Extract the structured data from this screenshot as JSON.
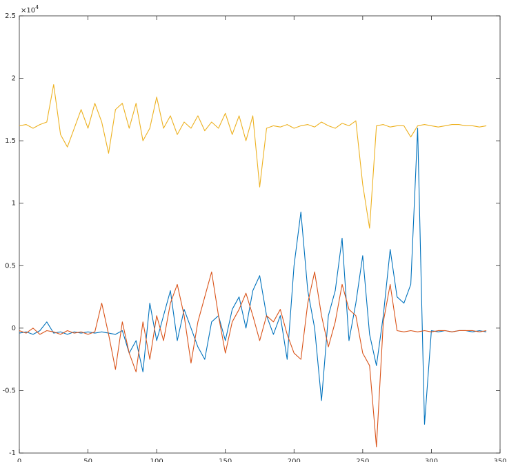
{
  "chart_data": {
    "type": "line",
    "x": [
      0,
      5,
      10,
      15,
      20,
      25,
      30,
      35,
      40,
      45,
      50,
      55,
      60,
      65,
      70,
      75,
      80,
      85,
      90,
      95,
      100,
      105,
      110,
      115,
      120,
      125,
      130,
      135,
      140,
      145,
      150,
      155,
      160,
      165,
      170,
      175,
      180,
      185,
      190,
      195,
      200,
      205,
      210,
      215,
      220,
      225,
      230,
      235,
      240,
      245,
      250,
      255,
      260,
      265,
      270,
      275,
      280,
      285,
      290,
      295,
      300,
      305,
      310,
      315,
      320,
      325,
      330,
      335,
      340
    ],
    "series": [
      {
        "color": "#0072BD",
        "values": [
          -0.04,
          -0.03,
          -0.05,
          -0.02,
          0.05,
          -0.04,
          -0.03,
          -0.05,
          -0.03,
          -0.04,
          -0.03,
          -0.04,
          -0.03,
          -0.04,
          -0.05,
          -0.02,
          -0.2,
          -0.1,
          -0.35,
          0.2,
          -0.1,
          0.1,
          0.3,
          -0.1,
          0.15,
          0.0,
          -0.15,
          -0.25,
          0.05,
          0.1,
          -0.1,
          0.15,
          0.25,
          0.0,
          0.3,
          0.42,
          0.1,
          -0.05,
          0.1,
          -0.25,
          0.5,
          0.93,
          0.3,
          0.0,
          -0.58,
          0.1,
          0.3,
          0.72,
          -0.1,
          0.2,
          0.58,
          -0.05,
          -0.3,
          0.1,
          0.63,
          0.25,
          0.2,
          0.35,
          1.6,
          -0.77,
          -0.02,
          -0.03,
          -0.02,
          -0.03,
          -0.02,
          -0.02,
          -0.03,
          -0.02,
          -0.03
        ]
      },
      {
        "color": "#D95319",
        "values": [
          -0.02,
          -0.04,
          0.0,
          -0.05,
          -0.02,
          -0.03,
          -0.05,
          -0.02,
          -0.04,
          -0.03,
          -0.05,
          -0.03,
          0.2,
          -0.05,
          -0.33,
          0.05,
          -0.2,
          -0.35,
          0.05,
          -0.25,
          0.1,
          -0.1,
          0.2,
          0.35,
          0.1,
          -0.28,
          0.05,
          0.25,
          0.45,
          0.1,
          -0.2,
          0.05,
          0.15,
          0.28,
          0.1,
          -0.1,
          0.1,
          0.05,
          0.15,
          -0.05,
          -0.2,
          -0.25,
          0.2,
          0.45,
          0.1,
          -0.15,
          0.05,
          0.35,
          0.15,
          0.1,
          -0.2,
          -0.3,
          -0.95,
          0.05,
          0.35,
          -0.02,
          -0.03,
          -0.02,
          -0.03,
          -0.02,
          -0.03,
          -0.02,
          -0.02,
          -0.03,
          -0.02,
          -0.02,
          -0.02,
          -0.03,
          -0.02
        ]
      },
      {
        "color": "#EDB120",
        "values": [
          1.62,
          1.63,
          1.6,
          1.63,
          1.65,
          1.95,
          1.55,
          1.45,
          1.6,
          1.75,
          1.6,
          1.8,
          1.65,
          1.4,
          1.75,
          1.8,
          1.6,
          1.8,
          1.5,
          1.6,
          1.85,
          1.6,
          1.7,
          1.55,
          1.65,
          1.6,
          1.7,
          1.58,
          1.65,
          1.6,
          1.72,
          1.55,
          1.7,
          1.5,
          1.7,
          1.13,
          1.6,
          1.62,
          1.61,
          1.63,
          1.6,
          1.62,
          1.63,
          1.61,
          1.65,
          1.62,
          1.6,
          1.64,
          1.62,
          1.66,
          1.15,
          0.8,
          1.62,
          1.63,
          1.61,
          1.62,
          1.62,
          1.53,
          1.62,
          1.63,
          1.62,
          1.61,
          1.62,
          1.63,
          1.63,
          1.62,
          1.62,
          1.61,
          1.62
        ]
      }
    ],
    "xlim": [
      0,
      350
    ],
    "ylim": [
      -1,
      2.5
    ],
    "xticks": [
      0,
      50,
      100,
      150,
      200,
      250,
      300,
      350
    ],
    "yticks": [
      -1,
      -0.5,
      0,
      0.5,
      1,
      1.5,
      2,
      2.5
    ],
    "y_multiplier_base": "×10",
    "y_multiplier_exponent": 4
  }
}
